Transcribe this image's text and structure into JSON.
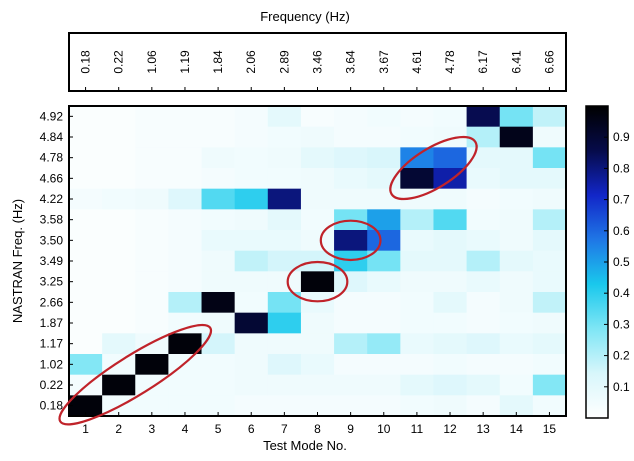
{
  "chart_data": {
    "type": "heatmap",
    "top_axis_label": "Frequency (Hz)",
    "top_tick_labels": [
      "0.18",
      "0.22",
      "1.06",
      "1.19",
      "1.84",
      "2.06",
      "2.89",
      "3.46",
      "3.64",
      "3.67",
      "4.61",
      "4.78",
      "6.17",
      "6.41",
      "6.66"
    ],
    "xlabel": "Test Mode No.",
    "x_tick_labels": [
      "1",
      "2",
      "3",
      "4",
      "5",
      "6",
      "7",
      "8",
      "9",
      "10",
      "11",
      "12",
      "13",
      "14",
      "15"
    ],
    "ylabel": "NASTRAN Freq. (Hz)",
    "y_tick_labels_top_to_bottom": [
      "4.92",
      "4.84",
      "4.78",
      "4.66",
      "4.22",
      "3.58",
      "3.50",
      "3.49",
      "3.25",
      "2.66",
      "1.87",
      "1.17",
      "1.02",
      "0.22",
      "0.18"
    ],
    "colorbar": {
      "range": [
        0,
        1
      ],
      "tick_labels": [
        "0.1",
        "0.2",
        "0.3",
        "0.4",
        "0.5",
        "0.6",
        "0.7",
        "0.8",
        "0.9"
      ],
      "colormap_colors_low_to_high": [
        "#ffffff",
        "#d8f6fb",
        "#7fe6f5",
        "#1ac8ec",
        "#1f77e6",
        "#1226c8",
        "#060b4a",
        "#000000"
      ]
    },
    "values_rows_top_to_bottom": [
      [
        0.02,
        0.02,
        0.03,
        0.03,
        0.03,
        0.04,
        0.1,
        0.03,
        0.04,
        0.05,
        0.04,
        0.05,
        0.85,
        0.3,
        0.18
      ],
      [
        0.02,
        0.02,
        0.03,
        0.03,
        0.03,
        0.04,
        0.05,
        0.06,
        0.04,
        0.04,
        0.05,
        0.06,
        0.2,
        0.95,
        0.06
      ],
      [
        0.02,
        0.02,
        0.03,
        0.03,
        0.06,
        0.05,
        0.06,
        0.1,
        0.12,
        0.14,
        0.55,
        0.6,
        0.1,
        0.1,
        0.3
      ],
      [
        0.02,
        0.02,
        0.03,
        0.03,
        0.04,
        0.05,
        0.05,
        0.06,
        0.08,
        0.1,
        0.9,
        0.75,
        0.08,
        0.1,
        0.1
      ],
      [
        0.04,
        0.05,
        0.06,
        0.12,
        0.35,
        0.4,
        0.8,
        0.06,
        0.06,
        0.06,
        0.06,
        0.06,
        0.04,
        0.05,
        0.06
      ],
      [
        0.02,
        0.02,
        0.03,
        0.04,
        0.05,
        0.06,
        0.1,
        0.05,
        0.3,
        0.5,
        0.2,
        0.35,
        0.05,
        0.06,
        0.2
      ],
      [
        0.02,
        0.02,
        0.03,
        0.04,
        0.08,
        0.08,
        0.08,
        0.06,
        0.8,
        0.6,
        0.08,
        0.1,
        0.08,
        0.06,
        0.1
      ],
      [
        0.02,
        0.02,
        0.03,
        0.04,
        0.06,
        0.18,
        0.15,
        0.15,
        0.4,
        0.3,
        0.1,
        0.1,
        0.2,
        0.1,
        0.08
      ],
      [
        0.02,
        0.02,
        0.03,
        0.04,
        0.06,
        0.06,
        0.06,
        0.98,
        0.12,
        0.08,
        0.06,
        0.06,
        0.08,
        0.06,
        0.08
      ],
      [
        0.02,
        0.02,
        0.03,
        0.2,
        0.96,
        0.05,
        0.3,
        0.08,
        0.04,
        0.04,
        0.05,
        0.1,
        0.04,
        0.06,
        0.18
      ],
      [
        0.02,
        0.02,
        0.03,
        0.05,
        0.06,
        0.9,
        0.4,
        0.06,
        0.04,
        0.04,
        0.05,
        0.05,
        0.04,
        0.05,
        0.06
      ],
      [
        0.02,
        0.1,
        0.06,
        0.98,
        0.15,
        0.06,
        0.06,
        0.06,
        0.2,
        0.25,
        0.08,
        0.1,
        0.12,
        0.08,
        0.1
      ],
      [
        0.28,
        0.05,
        0.98,
        0.05,
        0.05,
        0.06,
        0.12,
        0.08,
        0.04,
        0.04,
        0.04,
        0.05,
        0.04,
        0.04,
        0.05
      ],
      [
        0.04,
        0.98,
        0.05,
        0.05,
        0.05,
        0.06,
        0.06,
        0.06,
        0.06,
        0.06,
        0.1,
        0.12,
        0.1,
        0.05,
        0.28
      ],
      [
        0.98,
        0.05,
        0.05,
        0.05,
        0.05,
        0.04,
        0.04,
        0.04,
        0.04,
        0.04,
        0.05,
        0.06,
        0.04,
        0.1,
        0.05
      ]
    ],
    "highlight_ellipse_stroke": "#c0232a",
    "highlighted_regions": [
      {
        "test_modes": [
          1,
          4
        ],
        "nastran_rows": [
          "0.18",
          "1.17"
        ]
      },
      {
        "test_modes": [
          8,
          8
        ],
        "nastran_rows": [
          "3.25",
          "3.25"
        ]
      },
      {
        "test_modes": [
          9,
          9
        ],
        "nastran_rows": [
          "3.50",
          "3.50"
        ]
      },
      {
        "test_modes": [
          11,
          12
        ],
        "nastran_rows": [
          "4.66",
          "4.78"
        ]
      }
    ]
  }
}
